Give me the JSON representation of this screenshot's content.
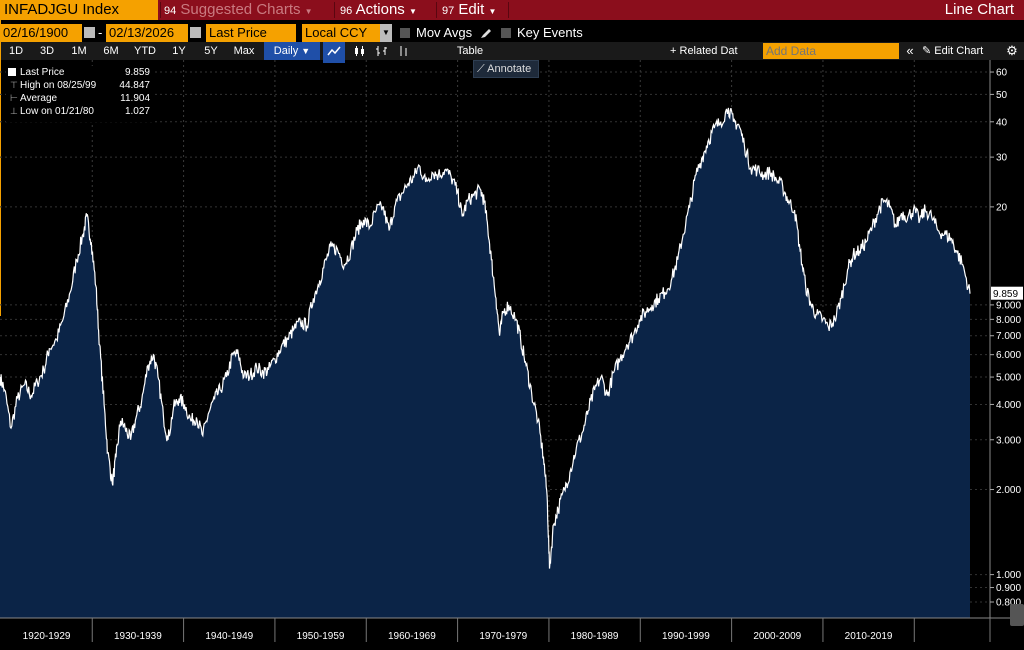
{
  "toolbar": {
    "ticker": "INFADJGU Index",
    "suggested_num": "94",
    "suggested_label": "Suggested Charts",
    "actions_num": "96",
    "actions_label": "Actions",
    "edit_num": "97",
    "edit_label": "Edit",
    "chart_type": "Line Chart"
  },
  "controls": {
    "start_date": "02/16/1900",
    "date_sep": "-",
    "end_date": "02/13/2026",
    "field": "Last Price",
    "currency": "Local CCY",
    "mov_avgs": "Mov Avgs",
    "key_events": "Key Events"
  },
  "periods": [
    "1D",
    "3D",
    "1M",
    "6M",
    "YTD",
    "1Y",
    "5Y",
    "Max"
  ],
  "frequency": "Daily",
  "table_label": "Table",
  "related_label": "Related Dat",
  "add_data_placeholder": "Add Data",
  "edit_chart_label": "Edit Chart",
  "annotate_label": "Annotate",
  "legend": {
    "last_label": "Last Price",
    "last_value": "9.859",
    "high_label": "High on 08/25/99",
    "high_value": "44.847",
    "avg_label": "Average",
    "avg_value": "11.904",
    "low_label": "Low on 01/21/80",
    "low_value": "1.027"
  },
  "colors": {
    "accent": "#f5a100",
    "titlebar": "#8b0e1c",
    "area_fill": "#0b2447",
    "line": "#ffffff",
    "daily_button": "#1f4fa8"
  },
  "chart_data": {
    "type": "area",
    "title": "INFADJGU Index",
    "scale": "log",
    "ylim": [
      0.8,
      62
    ],
    "y_ticks": [
      {
        "v": 60,
        "t": "60"
      },
      {
        "v": 50,
        "t": "50"
      },
      {
        "v": 40,
        "t": "40"
      },
      {
        "v": 30,
        "t": "30"
      },
      {
        "v": 20,
        "t": "20"
      },
      {
        "v": 9,
        "t": "9.000"
      },
      {
        "v": 8,
        "t": "8.000"
      },
      {
        "v": 7,
        "t": "7.000"
      },
      {
        "v": 6,
        "t": "6.000"
      },
      {
        "v": 5,
        "t": "5.000"
      },
      {
        "v": 4,
        "t": "4.000"
      },
      {
        "v": 3,
        "t": "3.000"
      },
      {
        "v": 2,
        "t": "2.000"
      },
      {
        "v": 1,
        "t": "1.000"
      },
      {
        "v": 0.9,
        "t": "0.900"
      },
      {
        "v": 0.8,
        "t": "0.800"
      }
    ],
    "current_value": 9.859,
    "current_label": "9.859",
    "decades": [
      "1920-1929",
      "1930-1939",
      "1940-1949",
      "1950-1959",
      "1960-1969",
      "1970-1979",
      "1980-1989",
      "1990-1999",
      "2000-2009",
      "2010-2019"
    ],
    "xlim": [
      1919.9,
      2026.1
    ],
    "series": [
      {
        "name": "Last Price",
        "points": [
          [
            1919.9,
            5.0
          ],
          [
            1920.4,
            4.5
          ],
          [
            1921.1,
            3.3
          ],
          [
            1921.8,
            4.2
          ],
          [
            1922.6,
            4.7
          ],
          [
            1923.3,
            4.3
          ],
          [
            1924.0,
            4.8
          ],
          [
            1924.7,
            5.3
          ],
          [
            1925.3,
            6.3
          ],
          [
            1926.1,
            6.8
          ],
          [
            1926.8,
            8.0
          ],
          [
            1927.6,
            10.0
          ],
          [
            1928.3,
            13.0
          ],
          [
            1929.0,
            16.0
          ],
          [
            1929.4,
            18.5
          ],
          [
            1929.9,
            15.0
          ],
          [
            1930.4,
            10.5
          ],
          [
            1930.8,
            6.5
          ],
          [
            1931.3,
            4.0
          ],
          [
            1931.7,
            2.7
          ],
          [
            1932.2,
            2.1
          ],
          [
            1932.6,
            2.6
          ],
          [
            1933.1,
            3.5
          ],
          [
            1933.6,
            3.3
          ],
          [
            1934.2,
            3.0
          ],
          [
            1934.8,
            3.6
          ],
          [
            1935.4,
            4.1
          ],
          [
            1936.1,
            5.5
          ],
          [
            1936.7,
            6.0
          ],
          [
            1937.2,
            5.0
          ],
          [
            1937.8,
            3.6
          ],
          [
            1938.3,
            3.0
          ],
          [
            1938.9,
            3.9
          ],
          [
            1939.5,
            4.2
          ],
          [
            1940.1,
            4.0
          ],
          [
            1940.8,
            3.5
          ],
          [
            1941.4,
            3.6
          ],
          [
            1942.1,
            3.1
          ],
          [
            1942.7,
            3.7
          ],
          [
            1943.4,
            4.2
          ],
          [
            1944.0,
            4.5
          ],
          [
            1944.7,
            5.0
          ],
          [
            1945.4,
            6.0
          ],
          [
            1946.0,
            6.0
          ],
          [
            1946.6,
            5.0
          ],
          [
            1947.3,
            5.1
          ],
          [
            1948.0,
            5.4
          ],
          [
            1948.7,
            5.2
          ],
          [
            1949.3,
            5.3
          ],
          [
            1950.0,
            5.8
          ],
          [
            1950.7,
            6.4
          ],
          [
            1951.4,
            6.8
          ],
          [
            1952.1,
            7.4
          ],
          [
            1952.8,
            7.8
          ],
          [
            1953.5,
            7.6
          ],
          [
            1954.2,
            9.5
          ],
          [
            1954.9,
            11.0
          ],
          [
            1955.6,
            13.0
          ],
          [
            1956.2,
            14.5
          ],
          [
            1956.9,
            14.0
          ],
          [
            1957.6,
            12.5
          ],
          [
            1958.3,
            14.0
          ],
          [
            1959.0,
            16.5
          ],
          [
            1959.7,
            18.0
          ],
          [
            1960.4,
            17.0
          ],
          [
            1961.1,
            19.5
          ],
          [
            1961.8,
            20.0
          ],
          [
            1962.5,
            16.5
          ],
          [
            1963.1,
            20.0
          ],
          [
            1963.8,
            22.0
          ],
          [
            1964.5,
            24.0
          ],
          [
            1965.2,
            25.5
          ],
          [
            1965.8,
            28.0
          ],
          [
            1966.5,
            24.5
          ],
          [
            1967.2,
            26.5
          ],
          [
            1967.9,
            26.0
          ],
          [
            1968.6,
            27.0
          ],
          [
            1969.3,
            25.5
          ],
          [
            1970.0,
            22.5
          ],
          [
            1970.5,
            18.5
          ],
          [
            1971.1,
            21.0
          ],
          [
            1971.8,
            22.0
          ],
          [
            1972.5,
            23.0
          ],
          [
            1972.9,
            21.0
          ],
          [
            1973.3,
            17.0
          ],
          [
            1973.7,
            13.0
          ],
          [
            1974.2,
            9.5
          ],
          [
            1974.6,
            7.0
          ],
          [
            1975.0,
            8.5
          ],
          [
            1975.6,
            9.0
          ],
          [
            1976.4,
            8.0
          ],
          [
            1976.9,
            6.8
          ],
          [
            1977.5,
            5.5
          ],
          [
            1978.1,
            4.4
          ],
          [
            1978.8,
            3.5
          ],
          [
            1979.4,
            2.6
          ],
          [
            1979.8,
            1.9
          ],
          [
            1980.06,
            1.05
          ],
          [
            1980.5,
            1.5
          ],
          [
            1981.0,
            1.7
          ],
          [
            1981.7,
            2.0
          ],
          [
            1982.3,
            2.3
          ],
          [
            1983.0,
            2.8
          ],
          [
            1983.7,
            3.2
          ],
          [
            1984.3,
            3.8
          ],
          [
            1985.0,
            4.5
          ],
          [
            1985.7,
            5.0
          ],
          [
            1986.4,
            4.3
          ],
          [
            1987.1,
            5.2
          ],
          [
            1987.8,
            5.8
          ],
          [
            1988.5,
            6.5
          ],
          [
            1989.2,
            7.0
          ],
          [
            1989.9,
            8.0
          ],
          [
            1990.6,
            8.5
          ],
          [
            1991.3,
            9.0
          ],
          [
            1992.0,
            9.5
          ],
          [
            1992.7,
            10.0
          ],
          [
            1993.4,
            11.0
          ],
          [
            1994.1,
            13.0
          ],
          [
            1994.7,
            16.0
          ],
          [
            1995.4,
            20.0
          ],
          [
            1996.1,
            26.0
          ],
          [
            1996.8,
            30.0
          ],
          [
            1997.4,
            34.0
          ],
          [
            1998.1,
            38.0
          ],
          [
            1998.8,
            40.0
          ],
          [
            1999.65,
            44.8
          ],
          [
            2000.2,
            40.0
          ],
          [
            2000.8,
            39.0
          ],
          [
            2001.4,
            33.0
          ],
          [
            2002.1,
            27.5
          ],
          [
            2002.8,
            27.0
          ],
          [
            2003.5,
            26.0
          ],
          [
            2004.2,
            26.5
          ],
          [
            2004.9,
            25.0
          ],
          [
            2005.6,
            23.5
          ],
          [
            2006.2,
            21.0
          ],
          [
            2006.9,
            19.5
          ],
          [
            2007.5,
            14.0
          ],
          [
            2008.1,
            10.5
          ],
          [
            2008.7,
            9.0
          ],
          [
            2009.3,
            8.3
          ],
          [
            2010.0,
            8.0
          ],
          [
            2010.6,
            7.5
          ],
          [
            2011.3,
            8.0
          ],
          [
            2012.0,
            9.5
          ],
          [
            2012.7,
            12.0
          ],
          [
            2013.3,
            13.5
          ],
          [
            2014.0,
            14.0
          ],
          [
            2014.7,
            15.0
          ],
          [
            2015.4,
            17.0
          ],
          [
            2016.1,
            19.5
          ],
          [
            2016.7,
            21.0
          ],
          [
            2017.3,
            20.0
          ],
          [
            2018.0,
            17.0
          ],
          [
            2018.6,
            19.0
          ],
          [
            2019.3,
            18.5
          ],
          [
            2019.9,
            19.5
          ],
          [
            2020.6,
            18.0
          ],
          [
            2021.2,
            19.5
          ],
          [
            2021.9,
            18.5
          ],
          [
            2022.6,
            16.5
          ],
          [
            2023.3,
            16.0
          ],
          [
            2024.0,
            15.5
          ],
          [
            2024.6,
            14.0
          ],
          [
            2025.3,
            12.5
          ],
          [
            2026.1,
            9.859
          ]
        ]
      }
    ]
  }
}
